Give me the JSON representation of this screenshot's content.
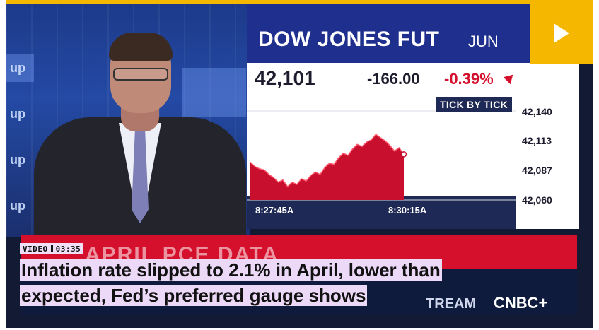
{
  "video": {
    "label": "VIDEO",
    "duration": "03:35",
    "headline": "Inflation rate slipped to 2.1% in April, lower than expected, Fed’s preferred gauge shows"
  },
  "studio": {
    "wall_texts": [
      "up",
      "up",
      "up",
      "up"
    ]
  },
  "ticker": {
    "name": "DOW JONES FUT",
    "contract": "JUN",
    "price": "42,101",
    "change": "-166.00",
    "pct": "-0.39%",
    "tick_label": "TICK BY TICK",
    "y_ticks": [
      "42,140",
      "42,113",
      "42,087",
      "42,060"
    ],
    "x_ticks": [
      "8:27:45A",
      "8:30:15A"
    ]
  },
  "banner": {
    "headline_partial": "APRIL PCE DATA",
    "stream_text": "TREAM",
    "brand": "CNBC+"
  },
  "colors": {
    "accent_yellow": "#f5b700",
    "cnbc_blue": "#1f2f8d",
    "down_red": "#d5102d",
    "highlight": "#ecd8f7"
  },
  "chart_data": {
    "type": "area",
    "title": "DOW JONES FUT JUN",
    "x_ticks": [
      "8:27:45A",
      "8:30:15A"
    ],
    "ylim": [
      42060,
      42140
    ],
    "y_ticks": [
      42140,
      42113,
      42087,
      42060
    ],
    "series": [
      {
        "values": [
          42094,
          42090,
          42088,
          42087,
          42083,
          42080,
          42076,
          42078,
          42072,
          42076,
          42074,
          42079,
          42077,
          42082,
          42085,
          42083,
          42089,
          42093,
          42092,
          42098,
          42102,
          42100,
          42106,
          42110,
          42108,
          42112,
          42114,
          42119,
          42116,
          42113,
          42109,
          42104,
          42107,
          42101
        ]
      }
    ]
  }
}
